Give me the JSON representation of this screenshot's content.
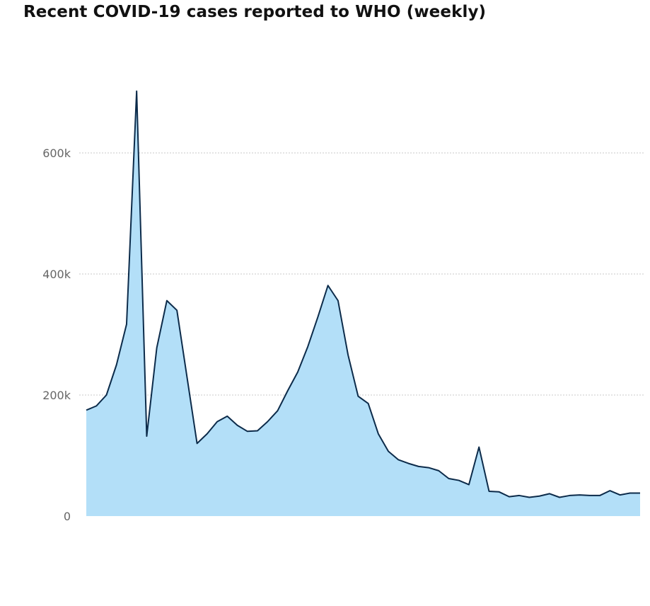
{
  "title": "Recent COVID-19 cases reported to WHO (weekly)",
  "colors": {
    "area_fill": "#b3dff8",
    "line": "#0c2b4a",
    "grid": "#c8c8c8",
    "tick_text": "#666666",
    "title_text": "#111111"
  },
  "chart_data": {
    "type": "area",
    "title": "Recent COVID-19 cases reported to WHO (weekly)",
    "xlabel": "",
    "ylabel": "",
    "ylim": [
      0,
      700000
    ],
    "yticks": [
      0,
      200000,
      400000,
      600000
    ],
    "ytick_labels": [
      "0",
      "200k",
      "400k",
      "600k"
    ],
    "grid": "horizontal-dotted",
    "legend": "none",
    "series": [
      {
        "values": [
          175000,
          182000,
          200000,
          250000,
          317000,
          702000,
          132000,
          278000,
          356000,
          340000,
          230000,
          120000,
          136000,
          156000,
          165000,
          150000,
          140000,
          141000,
          156000,
          174000,
          207000,
          238000,
          280000,
          329000,
          381000,
          356000,
          266000,
          198000,
          186000,
          136000,
          107000,
          93000,
          87000,
          82000,
          80000,
          75000,
          62000,
          59000,
          52000,
          114000,
          41000,
          40000,
          32000,
          34000,
          31000,
          33000,
          37000,
          31000,
          34000,
          35000,
          34000,
          34000,
          42000,
          35000,
          38000,
          38000
        ]
      }
    ]
  }
}
